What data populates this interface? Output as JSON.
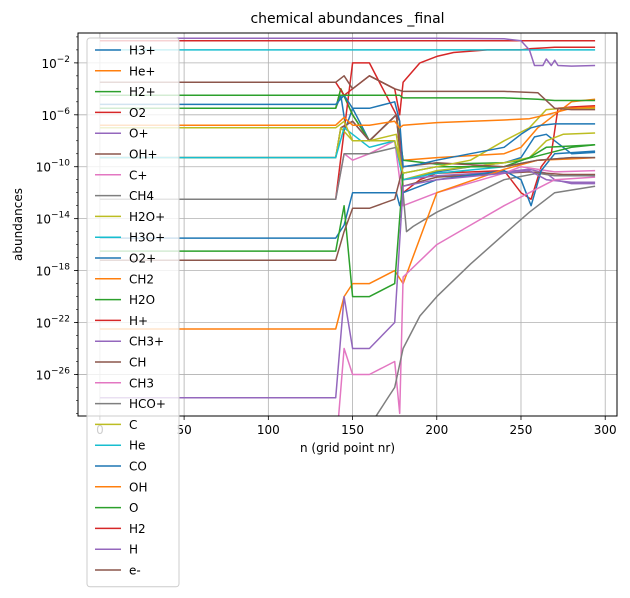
{
  "chart_data": {
    "type": "line",
    "title": "chemical abundances _final",
    "xlabel": "n (grid point nr)",
    "ylabel": "abundances",
    "xlim": [
      -13,
      307
    ],
    "ylim_log10": [
      -29.2,
      0.3
    ],
    "y_scale": "log",
    "x_ticks": [
      0,
      50,
      100,
      150,
      200,
      250,
      300
    ],
    "x_tick_labels": [
      "0",
      "50",
      "100",
      "150",
      "200",
      "250",
      "300"
    ],
    "y_ticks": [
      -2,
      -6,
      -10,
      -14,
      -18,
      -22,
      -26
    ],
    "y_tick_labels": [
      "10",
      "10",
      "10",
      "10",
      "10",
      "10",
      "10"
    ],
    "y_tick_exponents": [
      "−2",
      "−6",
      "−10",
      "−14",
      "−18",
      "−22",
      "−26"
    ],
    "grid": true,
    "legend_position": "upper-left",
    "series": [
      {
        "name": "H3+",
        "color": "#1f77b4",
        "x": [
          0,
          140,
          143,
          146,
          150,
          160,
          176,
          180,
          200,
          220,
          240,
          250,
          258,
          265,
          270,
          280,
          294
        ],
        "log10_y": [
          -5.5,
          -5.5,
          -4.5,
          -7,
          -5.5,
          -8,
          -6,
          -11,
          -10.4,
          -10,
          -9.7,
          -9.3,
          -7.7,
          -7.5,
          -8,
          -9,
          -8.9
        ]
      },
      {
        "name": "He+",
        "color": "#ff7f0e",
        "x": [
          0,
          140,
          143,
          150,
          160,
          176,
          180,
          200,
          240,
          250,
          260,
          270,
          280,
          294
        ],
        "log10_y": [
          -5.5,
          -5.5,
          -4,
          -6,
          -8,
          -6,
          -9.5,
          -9.3,
          -9,
          -8.5,
          -7,
          -6,
          -5,
          -4.8
        ]
      },
      {
        "name": "H2+",
        "color": "#2ca02c",
        "x": [
          0,
          140,
          143,
          150,
          160,
          176,
          180,
          200,
          240,
          250,
          265,
          280,
          294
        ],
        "log10_y": [
          -5.5,
          -5.5,
          -4,
          -6,
          -8,
          -6,
          -9.5,
          -9.8,
          -9.7,
          -9.5,
          -9,
          -8.5,
          -8.3
        ]
      },
      {
        "name": "O2",
        "color": "#d62728",
        "x": [
          0,
          140,
          150,
          160,
          178,
          180,
          190,
          200,
          240,
          250,
          256,
          262,
          268,
          272,
          280,
          294
        ],
        "log10_y": [
          -12.5,
          -12.5,
          -2,
          -2,
          -6.5,
          -12,
          -11,
          -10.5,
          -10.3,
          -12,
          -12.5,
          -10,
          -9,
          -5.5,
          -5.4,
          -5.3
        ]
      },
      {
        "name": "O+",
        "color": "#9467bd",
        "x": [
          0,
          140,
          143,
          150,
          160,
          176,
          180,
          200,
          240,
          255,
          265,
          270,
          280,
          294
        ],
        "log10_y": [
          -9.3,
          -9.3,
          -7,
          -6.5,
          -8,
          -6,
          -11,
          -10.7,
          -10.4,
          -10.2,
          -10.5,
          -11,
          -11.3,
          -11.3
        ]
      },
      {
        "name": "OH+",
        "color": "#8c564b",
        "x": [
          0,
          140,
          143,
          150,
          160,
          176,
          180,
          200,
          240,
          255,
          265,
          275,
          294
        ],
        "log10_y": [
          -9.3,
          -9.3,
          -7,
          -6.5,
          -8,
          -6,
          -11.5,
          -10.8,
          -10.5,
          -10.4,
          -10.5,
          -10.6,
          -10.6
        ]
      },
      {
        "name": "C+",
        "color": "#e377c2",
        "x": [
          0,
          140,
          145,
          150,
          160,
          175,
          180,
          200,
          240,
          250,
          270,
          294
        ],
        "log10_y": [
          -12.5,
          -12.5,
          -9,
          -9.5,
          -9,
          -8,
          -13,
          -12,
          -10.5,
          -10,
          -10.4,
          -10.3
        ]
      },
      {
        "name": "CH4",
        "color": "#7f7f7f",
        "x": [
          0,
          140,
          145,
          150,
          160,
          176,
          178,
          182,
          186,
          200,
          240,
          260,
          270,
          294
        ],
        "log10_y": [
          -12.5,
          -12.5,
          -9,
          -9,
          -9,
          -8.5,
          -9,
          -15,
          -14.6,
          -13.5,
          -11,
          -10.5,
          -10.7,
          -10.7
        ]
      },
      {
        "name": "H2O+",
        "color": "#bcbd22",
        "x": [
          0,
          140,
          143,
          150,
          160,
          176,
          180,
          200,
          220,
          240,
          255,
          265,
          275,
          294
        ],
        "log10_y": [
          -9.3,
          -9.3,
          -7,
          -8,
          -8,
          -7.5,
          -11,
          -10.3,
          -10,
          -9.7,
          -9.3,
          -8,
          -7.5,
          -7.4
        ]
      },
      {
        "name": "H3O+",
        "color": "#17becf",
        "x": [
          0,
          140,
          145,
          150,
          160,
          175,
          180,
          200,
          240,
          260,
          280,
          294
        ],
        "log10_y": [
          -9.3,
          -9.3,
          -7,
          -7.5,
          -8.5,
          -8,
          -11,
          -10.5,
          -10,
          -9.5,
          -9.3,
          -9.3
        ]
      },
      {
        "name": "O2+",
        "color": "#1f77b4",
        "x": [
          0,
          140,
          145,
          150,
          160,
          176,
          178,
          180,
          200,
          240,
          250,
          256,
          262,
          270,
          294
        ],
        "log10_y": [
          -15.5,
          -15.5,
          -14.5,
          -12,
          -12,
          -12,
          -13,
          -12,
          -11,
          -10.3,
          -11,
          -13,
          -10.3,
          -9,
          -8.8
        ]
      },
      {
        "name": "CH2",
        "color": "#ff7f0e",
        "x": [
          0,
          140,
          145,
          150,
          160,
          175,
          180,
          200,
          240,
          260,
          280,
          294
        ],
        "log10_y": [
          -22.5,
          -22.5,
          -20,
          -19,
          -19,
          -18,
          -19,
          -12,
          -10.2,
          -9.5,
          -9.4,
          -9.3
        ]
      },
      {
        "name": "H2O",
        "color": "#2ca02c",
        "x": [
          0,
          140,
          145,
          150,
          160,
          175,
          180,
          200,
          240,
          255,
          265,
          280,
          294
        ],
        "log10_y": [
          -16.5,
          -16.5,
          -13,
          -20,
          -20,
          -19,
          -10.5,
          -10,
          -10,
          -9.3,
          -8.5,
          -8.4,
          -8.3
        ]
      },
      {
        "name": "H+",
        "color": "#d62728",
        "x": [
          0,
          140,
          145,
          150,
          160,
          175,
          178,
          180,
          190,
          200,
          210,
          230,
          250,
          256,
          264,
          270,
          280,
          294
        ],
        "log10_y": [
          -3.5,
          -3.5,
          -4.5,
          -4,
          -3,
          -4,
          -6,
          -3.5,
          -2,
          -1.5,
          -1.2,
          -1,
          -1,
          -0.9,
          -0.85,
          -0.8,
          -0.8,
          -0.8
        ]
      },
      {
        "name": "CH3+",
        "color": "#9467bd",
        "x": [
          0,
          140,
          145,
          150,
          160,
          175,
          180,
          200,
          240,
          255,
          265,
          280,
          294
        ],
        "log10_y": [
          -27.8,
          -27.8,
          -20,
          -24,
          -24,
          -22,
          -11.5,
          -11,
          -10.5,
          -10.3,
          -11,
          -11.2,
          -11.2
        ]
      },
      {
        "name": "CH",
        "color": "#8c564b",
        "x": [
          0,
          140,
          145,
          150,
          160,
          175,
          180,
          200,
          240,
          260,
          280,
          294
        ],
        "log10_y": [
          -17.2,
          -17.2,
          -15,
          -13.2,
          -13.2,
          -12.5,
          -10,
          -9.7,
          -10,
          -9.5,
          -9.3,
          -9.3
        ]
      },
      {
        "name": "CH3",
        "color": "#e377c2",
        "x": [
          0,
          140,
          145,
          150,
          160,
          175,
          178,
          180,
          200,
          220,
          240,
          255,
          270,
          294
        ],
        "log10_y": [
          -32,
          -32,
          -24,
          -26,
          -26,
          -25,
          -29,
          -18.5,
          -16,
          -14.5,
          -13,
          -12,
          -11,
          -10.8
        ]
      },
      {
        "name": "HCO+",
        "color": "#7f7f7f",
        "x": [
          0,
          140,
          145,
          150,
          160,
          170,
          175,
          180,
          190,
          200,
          220,
          240,
          255,
          270,
          294
        ],
        "log10_y": [
          -32,
          -32,
          -30,
          -30,
          -30,
          -28,
          -27,
          -24,
          -21.5,
          -20,
          -17.5,
          -15.2,
          -13.5,
          -12,
          -11.5
        ]
      },
      {
        "name": "C",
        "color": "#bcbd22",
        "x": [
          0,
          140,
          145,
          150,
          160,
          175,
          180,
          200,
          220,
          240,
          255,
          265,
          275,
          294
        ],
        "log10_y": [
          -7,
          -7,
          -6.5,
          -8,
          -8,
          -8,
          -10.5,
          -10,
          -9.5,
          -8,
          -7,
          -5.6,
          -5.5,
          -5.5
        ]
      },
      {
        "name": "He",
        "color": "#17becf",
        "x": [
          0,
          140,
          150,
          160,
          180,
          200,
          250,
          294
        ],
        "log10_y": [
          -1,
          -1,
          -1,
          -1,
          -1,
          -1,
          -1,
          -1
        ]
      },
      {
        "name": "CO",
        "color": "#1f77b4",
        "x": [
          0,
          140,
          145,
          150,
          160,
          175,
          178,
          180,
          190,
          200,
          220,
          240,
          250,
          256,
          262,
          270,
          294
        ],
        "log10_y": [
          -5.2,
          -5.2,
          -4.5,
          -5.5,
          -5.5,
          -5,
          -6.5,
          -10,
          -9.8,
          -9.5,
          -9,
          -8.5,
          -7.5,
          -7,
          -6.8,
          -6.7,
          -6.7
        ]
      },
      {
        "name": "OH",
        "color": "#ff7f0e",
        "x": [
          0,
          140,
          145,
          150,
          160,
          175,
          178,
          180,
          200,
          240,
          255,
          265,
          280,
          294
        ],
        "log10_y": [
          -6.8,
          -6.8,
          -6.2,
          -6.8,
          -6.8,
          -6.5,
          -7,
          -6.8,
          -6.6,
          -6.4,
          -6.3,
          -6,
          -5.5,
          -5.4
        ]
      },
      {
        "name": "O",
        "color": "#2ca02c",
        "x": [
          0,
          140,
          150,
          160,
          178,
          180,
          240,
          260,
          270,
          294
        ],
        "log10_y": [
          -4.5,
          -4.5,
          -4.5,
          -4.5,
          -4.5,
          -4.7,
          -4.7,
          -4.8,
          -4.9,
          -4.9
        ]
      },
      {
        "name": "H2",
        "color": "#d62728",
        "x": [
          0,
          140,
          145,
          150,
          160,
          175,
          180,
          220,
          260,
          294
        ],
        "log10_y": [
          -0.3,
          -0.3,
          -0.3,
          -0.3,
          -0.3,
          -0.3,
          -0.3,
          -0.3,
          -0.3,
          -0.3
        ]
      },
      {
        "name": "H",
        "color": "#9467bd",
        "x": [
          0,
          140,
          150,
          160,
          200,
          240,
          250,
          255,
          258,
          263,
          265,
          268,
          270,
          272,
          280,
          294
        ],
        "log10_y": [
          -0.1,
          -0.1,
          -0.1,
          -0.1,
          -0.1,
          -0.15,
          -0.3,
          -1,
          -2.2,
          -2.2,
          -1.7,
          -2.2,
          -1.8,
          -2.2,
          -2.25,
          -2.2
        ]
      },
      {
        "name": "e-",
        "color": "#8c564b",
        "x": [
          0,
          140,
          145,
          150,
          160,
          175,
          180,
          200,
          240,
          260,
          270,
          280,
          294
        ],
        "log10_y": [
          -3.5,
          -3.5,
          -3,
          -4,
          -3,
          -4,
          -4.2,
          -4.2,
          -4.2,
          -4.3,
          -5.5,
          -5.6,
          -5.6
        ]
      }
    ]
  }
}
